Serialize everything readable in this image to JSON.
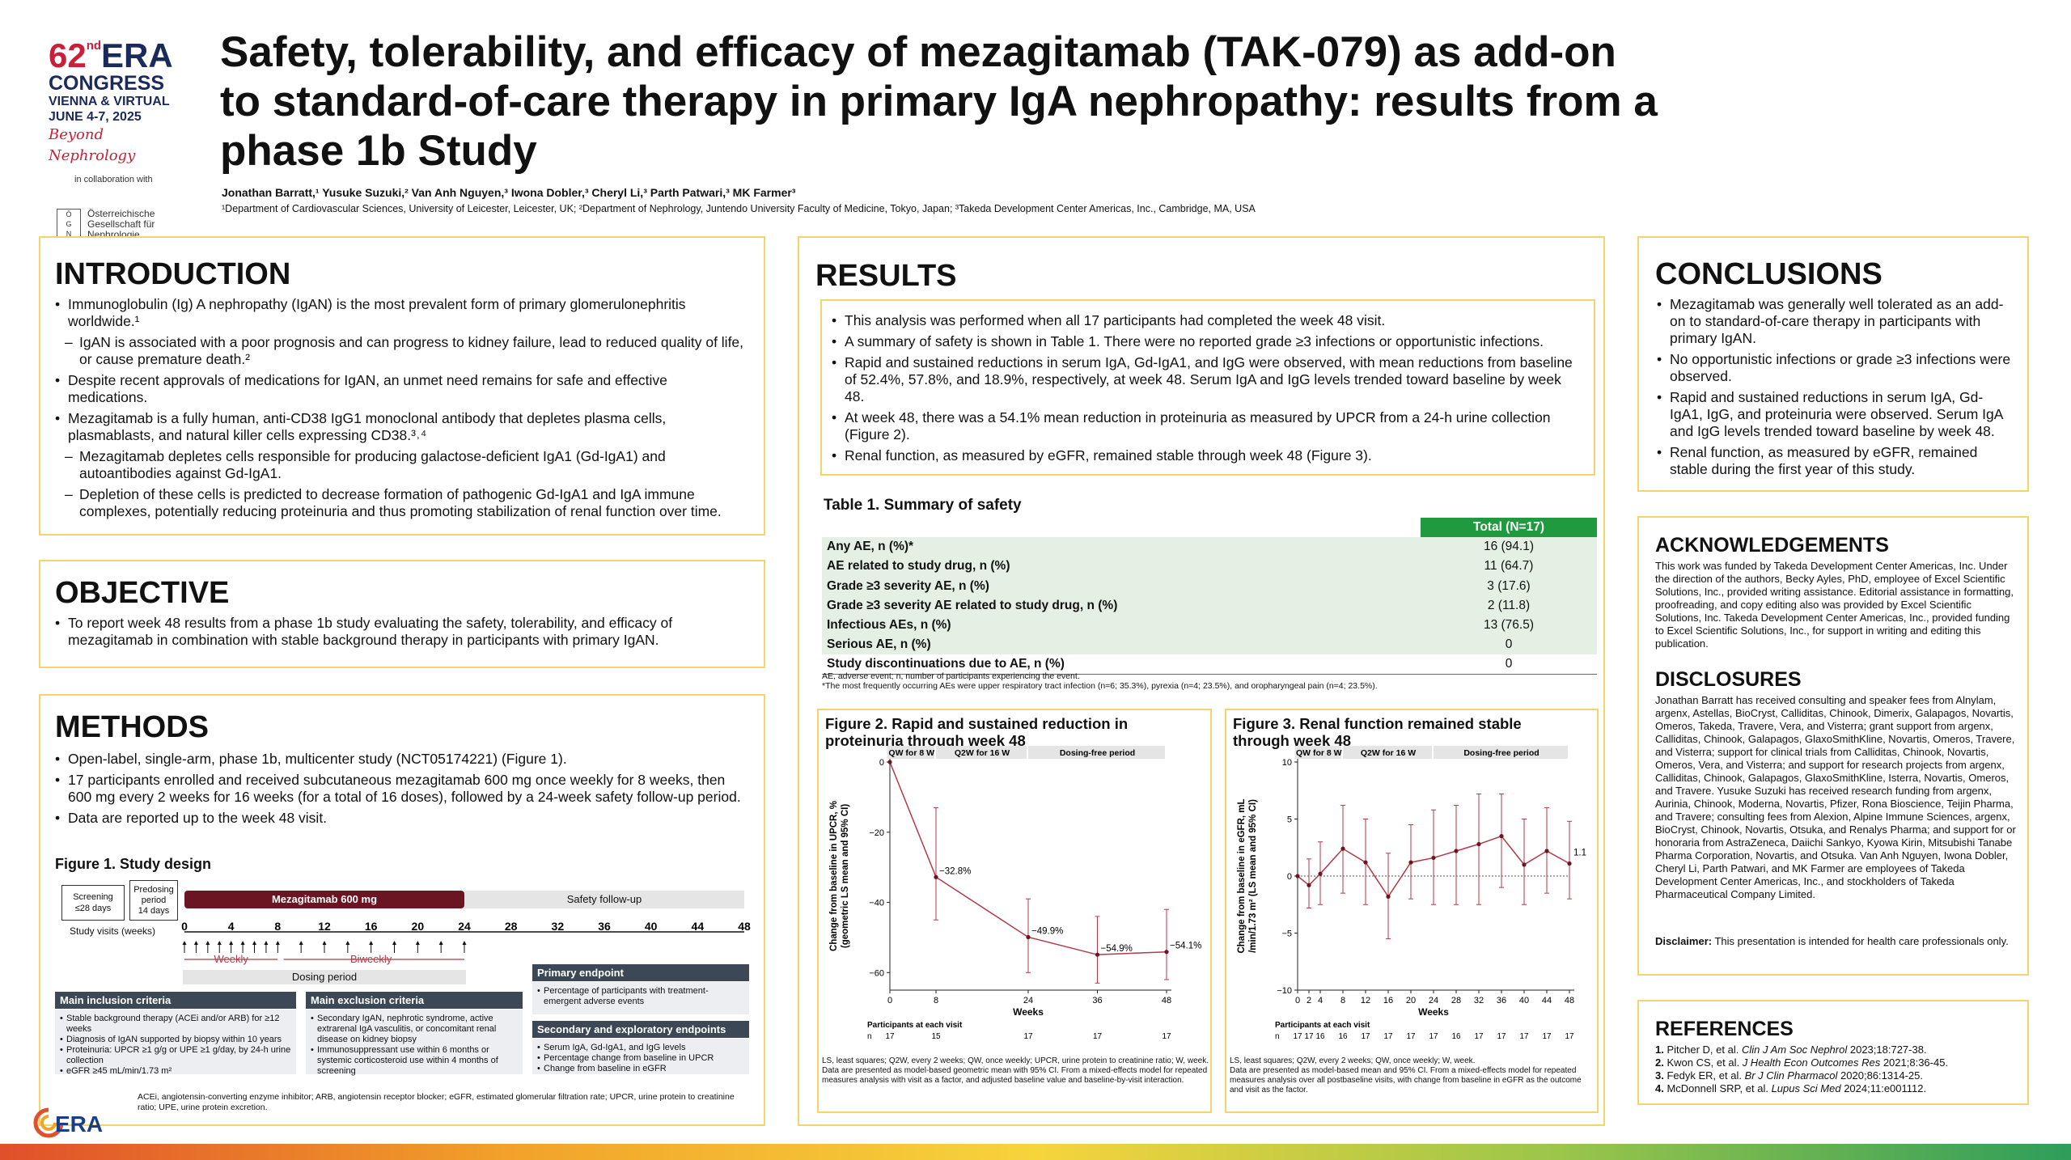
{
  "header": {
    "congress": {
      "number": "62",
      "suffix": "nd",
      "name": "ERA",
      "word": "CONGRESS",
      "place": "VIENNA & VIRTUAL",
      "dates": "JUNE 4-7, 2025",
      "tagline": "Beyond Nephrology",
      "collab": "in collaboration with",
      "society": [
        "Österreichische",
        "Gesellschaft für",
        "Nephrologie"
      ]
    },
    "title_lines": [
      "Safety, tolerability, and efficacy of mezagitamab (TAK-079) as add-on",
      "to standard-of-care therapy in primary IgA nephropathy: results from a",
      "phase 1b Study"
    ],
    "authors": "Jonathan Barratt,¹ Yusuke Suzuki,² Van Anh Nguyen,³ Iwona Dobler,³ Cheryl Li,³ Parth Patwari,³ MK Farmer³",
    "affiliations": "¹Department of Cardiovascular Sciences, University of Leicester, Leicester, UK; ²Department of Nephrology, Juntendo University Faculty of Medicine, Tokyo, Japan; ³Takeda Development Center Americas, Inc., Cambridge, MA, USA"
  },
  "intro": {
    "title": "INTRODUCTION",
    "items": [
      "Immunoglobulin (Ig) A nephropathy (IgAN) is the most prevalent form of primary glomerulonephritis worldwide.¹",
      "IgAN is associated with a poor prognosis and can progress to kidney failure, lead to reduced quality of life, or cause premature death.²",
      "Despite recent approvals of medications for IgAN, an unmet need remains for safe and effective medications.",
      "Mezagitamab is a fully human, anti-CD38 IgG1 monoclonal antibody that depletes plasma cells, plasmablasts, and natural killer cells expressing CD38.³˒⁴",
      "Mezagitamab depletes cells responsible for producing galactose-deficient IgA1 (Gd-IgA1) and autoantibodies against Gd-IgA1.",
      "Depletion of these cells is predicted to decrease formation of pathogenic Gd-IgA1 and IgA immune complexes, potentially reducing proteinuria and thus promoting stabilization of renal function over time."
    ]
  },
  "objective": {
    "title": "OBJECTIVE",
    "items": [
      "To report week 48 results from a phase 1b study evaluating the safety, tolerability, and efficacy of mezagitamab in combination with stable background therapy in participants with primary IgAN."
    ]
  },
  "methods": {
    "title": "METHODS",
    "items": [
      "Open-label, single-arm, phase 1b, multicenter study (NCT05174221) (Figure 1).",
      "17 participants enrolled and received subcutaneous mezagitamab 600 mg once weekly for 8 weeks, then 600 mg every 2 weeks for 16 weeks (for a total of 16 doses), followed by a 24-week safety follow-up period.",
      "Data are reported up to the week 48 visit."
    ],
    "fig1": {
      "title": "Figure 1. Study design",
      "screening": [
        "Screening",
        "≤28 days"
      ],
      "predosing": [
        "Predosing",
        "period",
        "14 days"
      ],
      "drug": "Mezagitamab 600 mg",
      "followup": "Safety follow-up",
      "visits_label": "Study visits (weeks)",
      "weeks": [
        "0",
        "4",
        "8",
        "12",
        "16",
        "20",
        "24",
        "28",
        "32",
        "36",
        "40",
        "44",
        "48"
      ],
      "weekly": "Weekly",
      "biweekly": "Biweekly",
      "dosing": "Dosing period",
      "inclusion": {
        "title": "Main inclusion criteria",
        "items": [
          "Stable background therapy (ACEi and/or ARB) for ≥12 weeks",
          "Diagnosis of IgAN supported by biopsy within 10 years",
          "Proteinuria: UPCR ≥1 g/g or UPE ≥1 g/day, by 24-h urine collection",
          "eGFR ≥45 mL/min/1.73 m²"
        ]
      },
      "exclusion": {
        "title": "Main exclusion criteria",
        "items": [
          "Secondary IgAN, nephrotic syndrome, active extrarenal IgA vasculitis, or concomitant renal disease on kidney biopsy",
          "Immunosuppressant use within 6 months or systemic corticosteroid use within 4 months of screening"
        ]
      },
      "primary": {
        "title": "Primary endpoint",
        "items": [
          "Percentage of participants with treatment-emergent adverse events"
        ]
      },
      "secondary": {
        "title": "Secondary and exploratory endpoints",
        "items": [
          "Serum IgA, Gd-IgA1, and IgG levels",
          "Percentage change from baseline in UPCR",
          "Change from baseline in eGFR"
        ]
      },
      "footnote": "ACEi, angiotensin-converting enzyme inhibitor; ARB, angiotensin receptor blocker; eGFR, estimated glomerular filtration rate; UPCR, urine protein to creatinine ratio; UPE, urine protein excretion."
    }
  },
  "results": {
    "title": "RESULTS",
    "items": [
      "This analysis was performed when all 17 participants had completed the week 48 visit.",
      "A summary of safety is shown in Table 1. There were no reported grade ≥3 infections or opportunistic infections.",
      "Rapid and sustained reductions in serum IgA, Gd-IgA1, and IgG were observed, with mean reductions from baseline of 52.4%, 57.8%, and 18.9%, respectively, at week 48. Serum IgA and IgG levels trended toward baseline by week 48.",
      "At week 48, there was a 54.1% mean reduction in proteinuria as measured by UPCR from a 24-h urine collection (Figure 2).",
      "Renal function, as measured by eGFR, remained stable through week 48 (Figure 3)."
    ],
    "table": {
      "title": "Table 1. Summary of safety",
      "col": "Total (N=17)",
      "rows": [
        [
          "Any AE, n (%)*",
          "16 (94.1)"
        ],
        [
          "AE related to study drug, n (%)",
          "11 (64.7)"
        ],
        [
          "Grade ≥3 severity AE, n (%)",
          "3 (17.6)"
        ],
        [
          "Grade ≥3 severity AE related to study drug, n (%)",
          "2 (11.8)"
        ],
        [
          "Infectious AEs, n (%)",
          "13 (76.5)"
        ],
        [
          "Serious AE, n (%)",
          "0"
        ],
        [
          "Study discontinuations due to AE, n (%)",
          "0"
        ]
      ],
      "foot1": "AE, adverse event; n, number of participants experiencing the event.",
      "foot2": "*The most frequently occurring AEs were upper respiratory tract infection (n=6; 35.3%), pyrexia (n=4; 23.5%), and oropharyngeal pain (n=4; 23.5%)."
    }
  },
  "chart_data": [
    {
      "type": "line",
      "title": "Figure 2. Rapid and sustained reduction in proteinuria through week 48",
      "xlabel": "Weeks",
      "ylabel": "Change from baseline in UPCR, % (geometric LS mean and 95% CI)",
      "x": [
        0,
        8,
        24,
        36,
        48
      ],
      "y": [
        0,
        -32.8,
        -49.9,
        -54.9,
        -54.1
      ],
      "ci_low": [
        0,
        -45,
        -60,
        -63,
        -62
      ],
      "ci_high": [
        0,
        -13,
        -39,
        -44,
        -42
      ],
      "labels": [
        "",
        "−32.8%",
        "−49.9%",
        "−54.9%",
        "−54.1%"
      ],
      "xticks": [
        "0",
        "8",
        "24",
        "36",
        "48"
      ],
      "yticks": [
        "0",
        "−20",
        "−40",
        "−60"
      ],
      "ylim": [
        -65,
        0
      ],
      "phases": [
        "QW for 8 W",
        "Q2W for 16 W",
        "Dosing-free period"
      ],
      "n_label": "Participants at each visit",
      "n": [
        "17",
        "15",
        "17",
        "17",
        "17"
      ],
      "foot": [
        "LS, least squares; Q2W, every 2 weeks; QW, once weekly; UPCR, urine protein to creatinine ratio; W, week.",
        "Data are presented as model-based geometric mean with 95% CI. From a mixed-effects model for repeated measures analysis with visit as a factor, and adjusted baseline value and baseline-by-visit interaction."
      ]
    },
    {
      "type": "line",
      "title": "Figure 3. Renal function remained stable through week 48",
      "xlabel": "Weeks",
      "ylabel": "Change from baseline in eGFR, mL/min/1.73 m² (LS mean and 95% CI)",
      "x": [
        0,
        2,
        4,
        8,
        12,
        16,
        20,
        24,
        28,
        32,
        36,
        40,
        44,
        48
      ],
      "y": [
        0,
        -0.8,
        0.2,
        2.4,
        1.2,
        -1.8,
        1.2,
        1.6,
        2.2,
        2.8,
        3.5,
        1.0,
        2.2,
        1.1
      ],
      "ci_low": [
        0,
        -2.8,
        -2.5,
        -1.5,
        -2.5,
        -5.5,
        -2.0,
        -2.5,
        -2.5,
        -2.5,
        -1.0,
        -2.5,
        -1.5,
        -2.0
      ],
      "ci_high": [
        0,
        1.5,
        3.0,
        6.2,
        5.0,
        2.0,
        4.5,
        5.8,
        6.2,
        7.2,
        7.2,
        5.0,
        6.0,
        4.8
      ],
      "value_label": "1.1",
      "xticks": [
        "0",
        "2",
        "4",
        "8",
        "12",
        "16",
        "20",
        "24",
        "28",
        "32",
        "36",
        "40",
        "44",
        "48"
      ],
      "yticks": [
        "10",
        "5",
        "0",
        "−5",
        "−10"
      ],
      "ylim": [
        -10,
        10
      ],
      "phases": [
        "QW for 8 W",
        "Q2W for 16 W",
        "Dosing-free period"
      ],
      "n_label": "Participants at each visit",
      "n": [
        "17",
        "17",
        "16",
        "16",
        "17",
        "17",
        "17",
        "17",
        "16",
        "17",
        "17",
        "17",
        "17",
        "17"
      ],
      "foot": [
        "LS, least squares; Q2W, every 2 weeks; QW, once weekly; W, week.",
        "Data are presented as model-based mean and 95% CI. From a mixed-effects model for repeated measures analysis over all postbaseline visits, with change from baseline in eGFR as the outcome and visit as the factor."
      ]
    }
  ],
  "conclusions": {
    "title": "CONCLUSIONS",
    "items": [
      "Mezagitamab was generally well tolerated as an add-on to standard-of-care therapy in participants with primary IgAN.",
      "No opportunistic infections or grade ≥3 infections were observed.",
      "Rapid and sustained reductions in serum IgA, Gd-IgA1, IgG, and proteinuria were observed. Serum IgA and IgG levels trended toward baseline by week 48.",
      "Renal function, as measured by eGFR, remained stable during the first year of this study."
    ]
  },
  "ack": {
    "title": "ACKNOWLEDGEMENTS",
    "text": "This work was funded by Takeda Development Center Americas, Inc. Under the direction of the authors, Becky Ayles, PhD, employee of Excel Scientific Solutions, Inc., provided writing assistance. Editorial assistance in formatting, proofreading, and copy editing also was provided by Excel Scientific Solutions, Inc. Takeda Development Center Americas, Inc., provided funding to Excel Scientific Solutions, Inc., for support in writing and editing this publication."
  },
  "disc": {
    "title": "DISCLOSURES",
    "text": "Jonathan Barratt has received consulting and speaker fees from Alnylam, argenx, Astellas, BioCryst, Calliditas, Chinook, Dimerix, Galapagos, Novartis, Omeros, Takeda, Travere, Vera, and Visterra; grant support from argenx, Calliditas, Chinook, Galapagos, GlaxoSmithKline, Novartis, Omeros, Travere, and Visterra; support for clinical trials from Calliditas, Chinook, Novartis, Omeros, Vera, and Visterra; and support for research projects from argenx, Calliditas, Chinook, Galapagos, GlaxoSmithKline, Isterra, Novartis, Omeros, and Travere. Yusuke Suzuki has received research funding from argenx, Aurinia, Chinook, Moderna, Novartis, Pfizer, Rona Bioscience, Teijin Pharma, and Travere; consulting fees from Alexion, Alpine Immune Sciences, argenx, BioCryst, Chinook, Novartis, Otsuka, and Renalys Pharma; and support for or honoraria from AstraZeneca, Daiichi Sankyo, Kyowa Kirin, Mitsubishi Tanabe Pharma Corporation, Novartis, and Otsuka. Van Anh Nguyen, Iwona Dobler, Cheryl Li, Parth Patwari, and MK Farmer are employees of Takeda Development Center Americas, Inc., and stockholders of Takeda Pharmaceutical Company Limited.",
    "disclaimer_label": "Disclaimer:",
    "disclaimer": " This presentation is intended for health care professionals only."
  },
  "refs": {
    "title": "REFERENCES",
    "items": [
      {
        "n": "1.",
        "a": "Pitcher D, et al. ",
        "j": "Clin J Am Soc Nephrol",
        "r": " 2023;18:727-38."
      },
      {
        "n": "2.",
        "a": "Kwon CS, et al. ",
        "j": "J Health Econ Outcomes Res",
        "r": " 2021;8:36-45."
      },
      {
        "n": "3.",
        "a": "Fedyk ER, et al. ",
        "j": "Br J Clin Pharmacol",
        "r": " 2020;86:1314-25."
      },
      {
        "n": "4.",
        "a": "McDonnell SRP, et al. ",
        "j": "Lupus Sci Med",
        "r": " 2024;11:e001112."
      }
    ]
  },
  "footer_logo": "ERA",
  "colors": {
    "accent_red": "#c8203a",
    "panel_border": "#f4d46b",
    "table_green": "#1f9a3e",
    "drug_bar": "#6b1522",
    "box_dark": "#3c4856",
    "line_red": "#b23a48"
  }
}
